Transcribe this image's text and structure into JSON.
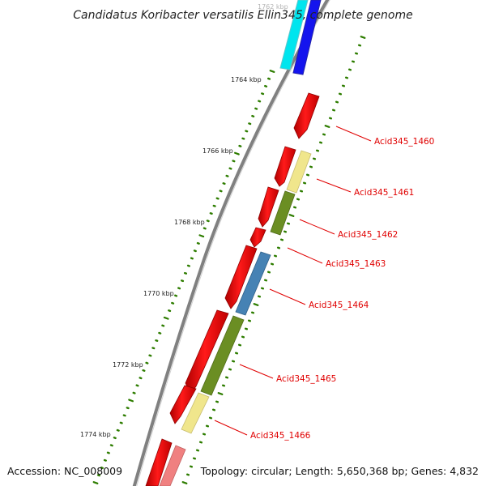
{
  "title": "Candidatus Koribacter versatilis Ellin345, complete genome",
  "footer": {
    "accession": "Accession: NC_008009",
    "summary": "Topology: circular; Length: 5,650,368 bp; Genes: 4,832"
  },
  "colors": {
    "backbone": "#888888",
    "cds": "#ff0000",
    "cds_light": "#f08080",
    "tick": "#2e7d00",
    "label": "#e00000",
    "cyan": "#00e5ee",
    "blue": "#1010ee",
    "khaki": "#f0e68c",
    "olive": "#6b8e23",
    "steelblue": "#4682b4",
    "pink": "#f08080"
  },
  "scale": {
    "partial_label": "1762 kbp",
    "tick_labels": [
      "1764 kbp",
      "1766 kbp",
      "1768 kbp",
      "1770 kbp",
      "1772 kbp",
      "1774 kbp"
    ]
  },
  "gene_labels": [
    "Acid345_1460",
    "Acid345_1461",
    "Acid345_1462",
    "Acid345_1463",
    "Acid345_1464",
    "Acid345_1465",
    "Acid345_1466"
  ]
}
